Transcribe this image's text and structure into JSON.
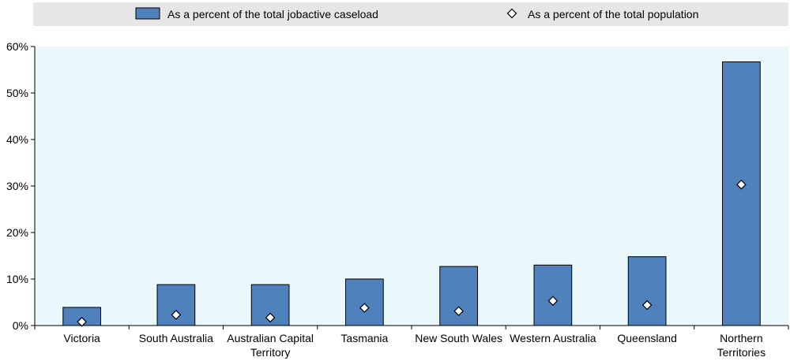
{
  "chart_data": {
    "type": "bar",
    "categories": [
      [
        "Victoria"
      ],
      [
        "South Australia"
      ],
      [
        "Australian Capital",
        "Territory"
      ],
      [
        "Tasmania"
      ],
      [
        "New South Wales"
      ],
      [
        "Western Australia"
      ],
      [
        "Queensland"
      ],
      [
        "Northern",
        "Territories"
      ]
    ],
    "series": [
      {
        "name": "As a percent of the total jobactive caseload",
        "kind": "bar",
        "color": "#4f81bd",
        "values": [
          3.9,
          8.8,
          8.8,
          10.0,
          12.7,
          13.0,
          14.8,
          56.7
        ]
      },
      {
        "name": "As a percent of the total population",
        "kind": "marker",
        "marker": "diamond",
        "color": "#ffffff",
        "values": [
          0.8,
          2.3,
          1.7,
          3.8,
          3.1,
          5.3,
          4.4,
          30.3
        ]
      }
    ],
    "y_ticks": [
      "0%",
      "10%",
      "20%",
      "30%",
      "40%",
      "50%",
      "60%"
    ],
    "ylim": [
      0,
      60
    ],
    "legend_position": "top",
    "plot_background": "#eaf7fb",
    "legend_background": "#e6e6e6",
    "grid": false
  }
}
